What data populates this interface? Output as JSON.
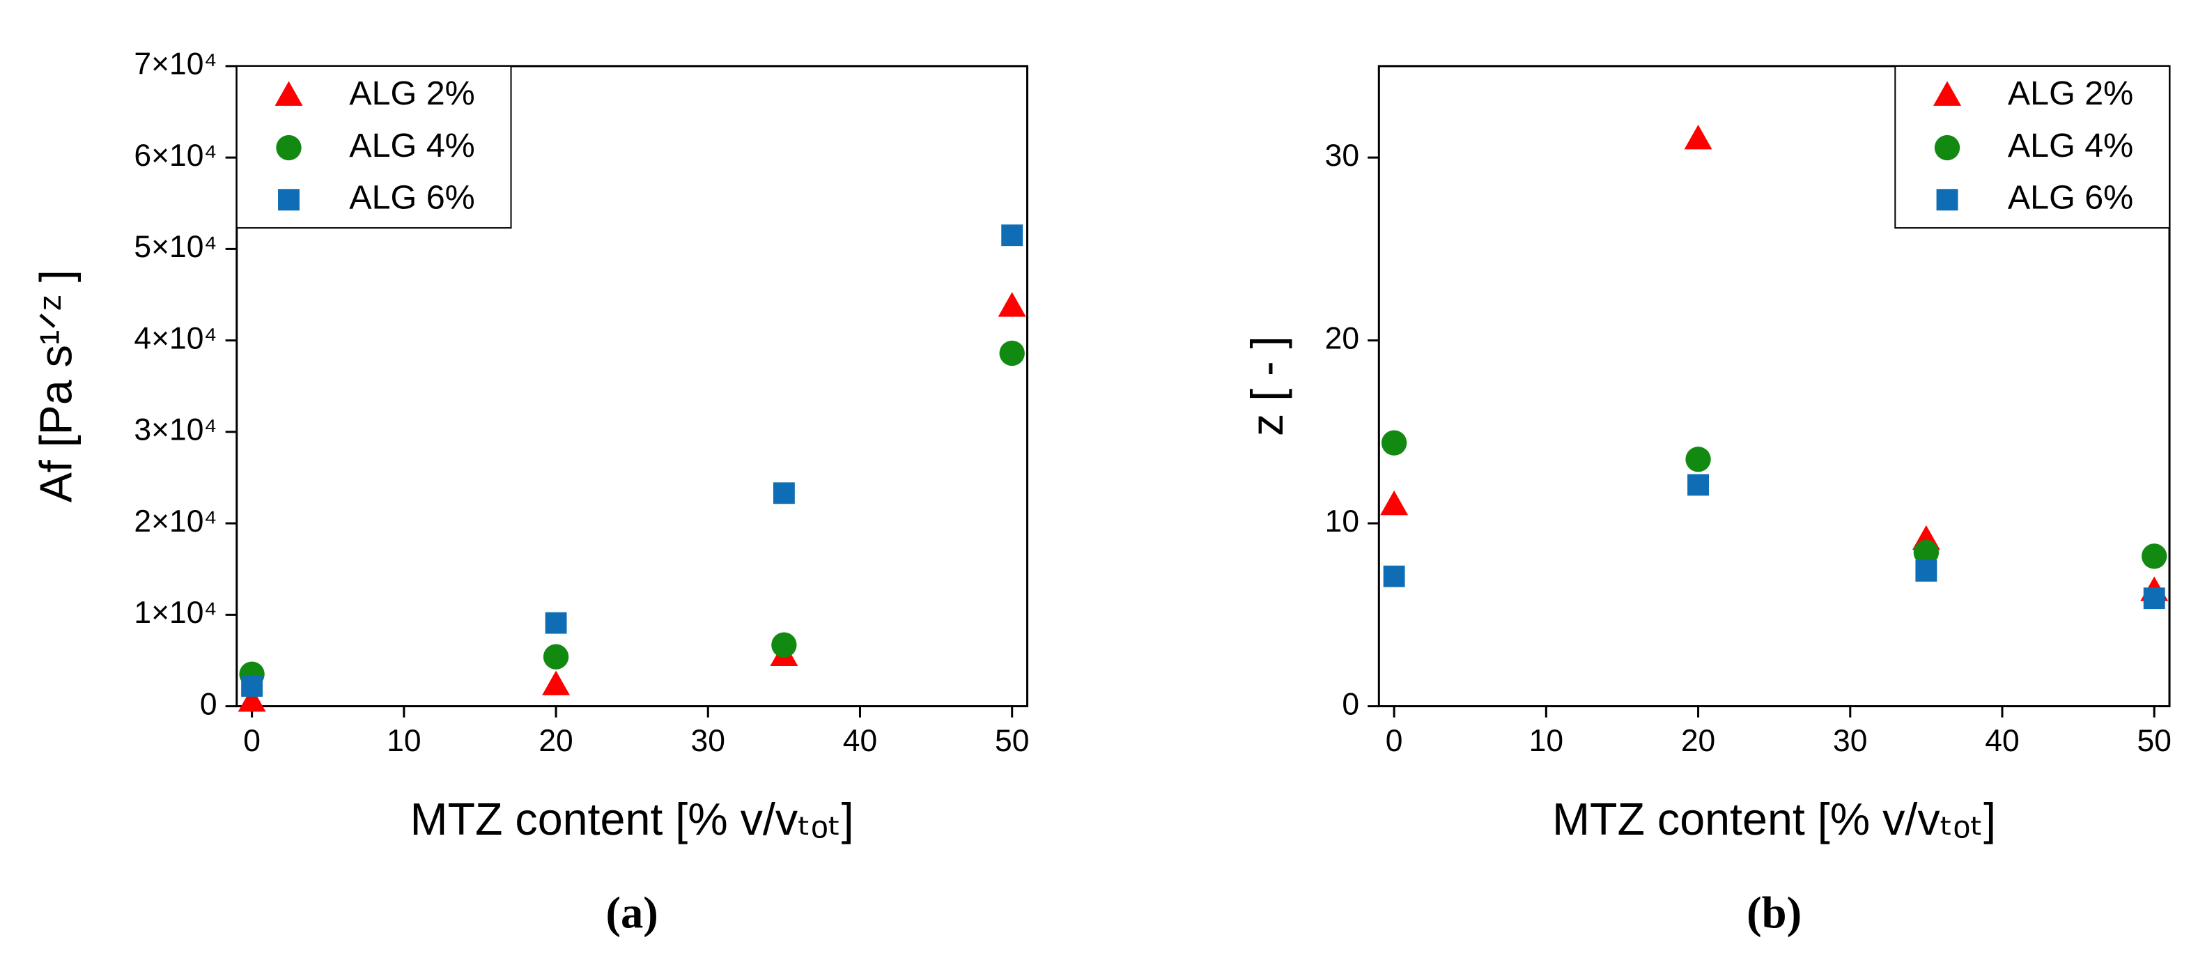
{
  "chart_data": [
    {
      "type": "scatter",
      "caption": "(a)",
      "xlabel": "MTZ content [% v/vₜₒₜ]",
      "ylabel": "Af [Pa s¹ᐟᶻ ]",
      "xlim": [
        -1,
        51
      ],
      "xticks": [
        0,
        10,
        20,
        30,
        40,
        50
      ],
      "ylim": [
        0,
        70000
      ],
      "yticks": [
        0,
        {
          "value": 10000,
          "label": "1×10⁴"
        },
        {
          "value": 20000,
          "label": "2×10⁴"
        },
        {
          "value": 30000,
          "label": "3×10⁴"
        },
        {
          "value": 40000,
          "label": "4×10⁴"
        },
        {
          "value": 50000,
          "label": "5×10⁴"
        },
        {
          "value": 60000,
          "label": "6×10⁴"
        },
        {
          "value": 70000,
          "label": "7×10⁴"
        }
      ],
      "legend": "upper left",
      "x": [
        0,
        20,
        35,
        50
      ],
      "series": [
        {
          "name": "ALG 2%",
          "color": "#ff0000",
          "marker": "triangle",
          "values": [
            500,
            2300,
            5500,
            43700
          ]
        },
        {
          "name": "ALG 4%",
          "color": "#128a12",
          "marker": "circle",
          "values": [
            3500,
            5400,
            6700,
            38600
          ]
        },
        {
          "name": "ALG 6%",
          "color": "#0f6db5",
          "marker": "square",
          "values": [
            2200,
            9100,
            23300,
            51500
          ]
        }
      ]
    },
    {
      "type": "scatter",
      "caption": "(b)",
      "xlabel": "MTZ content [% v/vₜₒₜ]",
      "ylabel": "z [ - ]",
      "xlim": [
        -1,
        51
      ],
      "xticks": [
        0,
        10,
        20,
        30,
        40,
        50
      ],
      "ylim": [
        0,
        35
      ],
      "yticks": [
        0,
        10,
        20,
        30
      ],
      "legend": "upper right",
      "x": [
        0,
        20,
        35,
        50
      ],
      "series": [
        {
          "name": "ALG 2%",
          "color": "#ff0000",
          "marker": "triangle",
          "values": [
            11.0,
            31.0,
            9.1,
            6.3
          ]
        },
        {
          "name": "ALG 4%",
          "color": "#128a12",
          "marker": "circle",
          "values": [
            14.4,
            13.5,
            8.4,
            8.2
          ]
        },
        {
          "name": "ALG 6%",
          "color": "#0f6db5",
          "marker": "square",
          "values": [
            7.1,
            12.1,
            7.4,
            5.9
          ]
        }
      ]
    }
  ]
}
